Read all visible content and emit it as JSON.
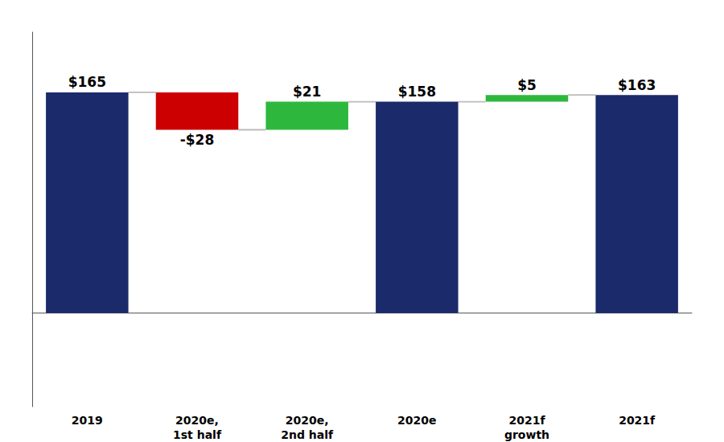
{
  "chart_data": {
    "type": "waterfall",
    "categories": [
      "2019",
      "2020e,\n1st half",
      "2020e,\n2nd half",
      "2020e",
      "2021f\ngrowth",
      "2021f"
    ],
    "values": [
      165,
      -28,
      21,
      158,
      5,
      163
    ],
    "value_labels": [
      "$165",
      "-$28",
      "$21",
      "$158",
      "$5",
      "$163"
    ],
    "totals": [
      true,
      false,
      false,
      true,
      false,
      true
    ],
    "colors": [
      "#1b2a6b",
      "#cc0000",
      "#2db83d",
      "#1b2a6b",
      "#2db83d",
      "#1b2a6b"
    ],
    "ylim": [
      -70,
      210
    ],
    "tick_labels": "x",
    "grid": false,
    "data_labels": true
  }
}
